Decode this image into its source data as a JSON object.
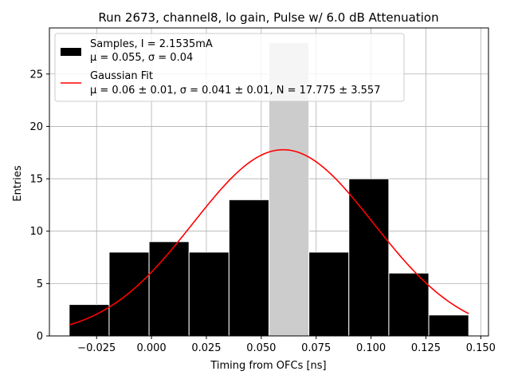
{
  "chart_data": {
    "type": "bar",
    "title": "Run 2673, channel8, lo gain, Pulse w/ 6.0 dB Attenuation",
    "xlabel": "Timing from OFCs [ns]",
    "ylabel": "Entries",
    "xlim": [
      -0.0465,
      0.1535
    ],
    "ylim": [
      0,
      29.4
    ],
    "xticks": [
      -0.025,
      0.0,
      0.025,
      0.05,
      0.075,
      0.1,
      0.125,
      0.15
    ],
    "xtick_labels": [
      "−0.025",
      "0.000",
      "0.025",
      "0.050",
      "0.075",
      "0.100",
      "0.125",
      "0.150"
    ],
    "yticks": [
      0,
      5,
      10,
      15,
      20,
      25
    ],
    "ytick_labels": [
      "0",
      "5",
      "10",
      "15",
      "20",
      "25"
    ],
    "grid": true,
    "legend_position": "top-left",
    "bin_edges": [
      -0.0375,
      -0.0193,
      -0.0011,
      0.0171,
      0.0353,
      0.0535,
      0.0717,
      0.0899,
      0.1081,
      0.1263,
      0.1445
    ],
    "bin_counts": [
      3,
      8,
      9,
      8,
      13,
      28,
      8,
      15,
      6,
      2
    ],
    "highlighted_bin": 5,
    "series": [
      {
        "name": "Samples, I = 2.1535mA",
        "subtitle": "μ = 0.055, σ = 0.04",
        "kind": "histogram",
        "color": "#000000"
      },
      {
        "name": "Gaussian Fit",
        "subtitle": "μ = 0.06 ± 0.01, σ = 0.041 ± 0.01, N = 17.775 ± 3.557",
        "kind": "line",
        "color": "#ff0000",
        "fit": {
          "mu": 0.06,
          "sigma": 0.041,
          "N": 17.775,
          "x_range": [
            -0.0375,
            0.1445
          ]
        }
      }
    ]
  },
  "colors": {
    "bar": "#000000",
    "bar_edge": "#ffffff",
    "highlight_bar": "#cccccc",
    "fit": "#ff0000",
    "grid": "#b0b0b0"
  }
}
